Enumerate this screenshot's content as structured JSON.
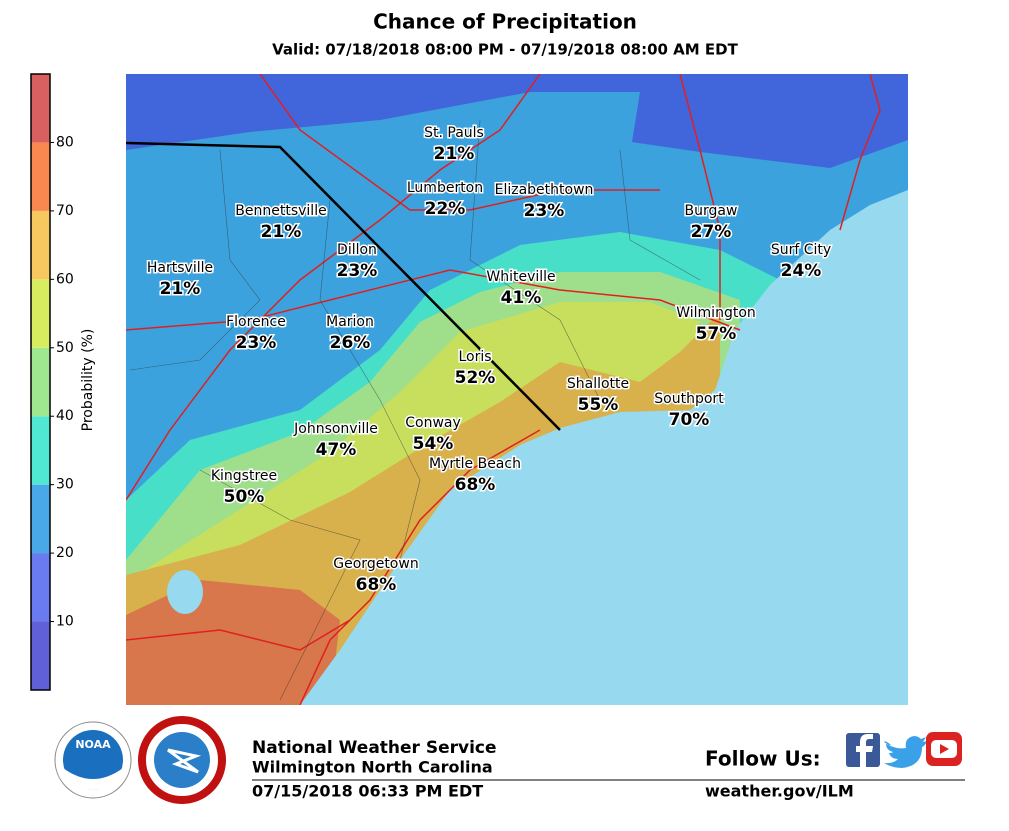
{
  "header": {
    "title": "Chance of Precipitation",
    "subtitle": "Valid: 07/18/2018 08:00 PM - 07/19/2018 08:00 AM EDT"
  },
  "legend": {
    "label": "Probability (%)",
    "range": [
      0,
      90
    ],
    "ticks": [
      10,
      20,
      30,
      40,
      50,
      60,
      70,
      80
    ],
    "colors": [
      "#6060d8",
      "#6a7af0",
      "#48a8e8",
      "#50e8d2",
      "#a0e890",
      "#d8ec60",
      "#f8c860",
      "#f88850",
      "#d86060"
    ]
  },
  "cities": [
    {
      "name": "St. Pauls",
      "pop": "21%"
    },
    {
      "name": "Lumberton",
      "pop": "22%"
    },
    {
      "name": "Elizabethtown",
      "pop": "23%"
    },
    {
      "name": "Bennettsville",
      "pop": "21%"
    },
    {
      "name": "Burgaw",
      "pop": "27%"
    },
    {
      "name": "Dillon",
      "pop": "23%"
    },
    {
      "name": "Surf City",
      "pop": "24%"
    },
    {
      "name": "Hartsville",
      "pop": "21%"
    },
    {
      "name": "Whiteville",
      "pop": "41%"
    },
    {
      "name": "Wilmington",
      "pop": "57%"
    },
    {
      "name": "Florence",
      "pop": "23%"
    },
    {
      "name": "Marion",
      "pop": "26%"
    },
    {
      "name": "Loris",
      "pop": "52%"
    },
    {
      "name": "Shallotte",
      "pop": "55%"
    },
    {
      "name": "Southport",
      "pop": "70%"
    },
    {
      "name": "Johnsonville",
      "pop": "47%"
    },
    {
      "name": "Conway",
      "pop": "54%"
    },
    {
      "name": "Myrtle Beach",
      "pop": "68%"
    },
    {
      "name": "Kingstree",
      "pop": "50%"
    },
    {
      "name": "Georgetown",
      "pop": "68%"
    }
  ],
  "footer": {
    "logo": "NOAA",
    "office": "National Weather Service",
    "location": "Wilmington North Carolina",
    "issued": "07/15/2018 06:33 PM EDT",
    "follow": "Follow Us:",
    "url": "weather.gov/ILM"
  }
}
